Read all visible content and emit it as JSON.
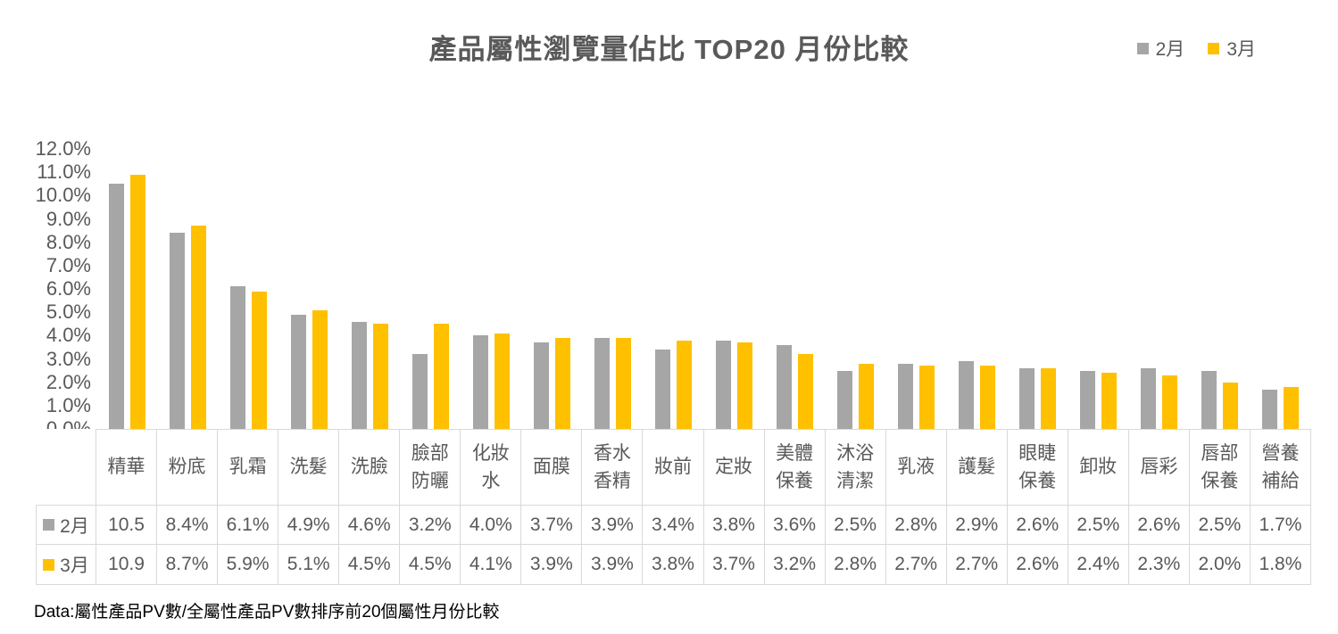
{
  "title": "產品屬性瀏覽量佔比 TOP20 月份比較",
  "legend": {
    "items": [
      {
        "key": "feb",
        "label": "2月",
        "color": "#a6a6a6"
      },
      {
        "key": "mar",
        "label": "3月",
        "color": "#ffc000"
      }
    ]
  },
  "y_axis": {
    "labels": [
      "12.0%",
      "11.0%",
      "10.0%",
      "9.0%",
      "8.0%",
      "7.0%",
      "6.0%",
      "5.0%",
      "4.0%",
      "3.0%",
      "2.0%",
      "1.0%",
      "0.0%"
    ]
  },
  "chart_data": {
    "type": "bar",
    "title": "產品屬性瀏覽量佔比 TOP20 月份比較",
    "categories": [
      "精華",
      "粉底",
      "乳霜",
      "洗髮",
      "洗臉",
      "臉部防曬",
      "化妝水",
      "面膜",
      "香水香精",
      "妝前",
      "定妝",
      "美體保養",
      "沐浴清潔",
      "乳液",
      "護髮",
      "眼睫保養",
      "卸妝",
      "唇彩",
      "唇部保養",
      "營養補給"
    ],
    "categories_display": [
      "精華",
      "粉底",
      "乳霜",
      "洗髮",
      "洗臉",
      "臉部\n防曬",
      "化妝\n水",
      "面膜",
      "香水\n香精",
      "妝前",
      "定妝",
      "美體\n保養",
      "沐浴\n清潔",
      "乳液",
      "護髮",
      "眼睫\n保養",
      "卸妝",
      "唇彩",
      "唇部\n保養",
      "營養\n補給"
    ],
    "series": [
      {
        "name": "2月",
        "key": "feb",
        "color": "#a6a6a6",
        "values": [
          10.5,
          8.4,
          6.1,
          4.9,
          4.6,
          3.2,
          4.0,
          3.7,
          3.9,
          3.4,
          3.8,
          3.6,
          2.5,
          2.8,
          2.9,
          2.6,
          2.5,
          2.6,
          2.5,
          1.7
        ],
        "display": [
          "10.5",
          "8.4%",
          "6.1%",
          "4.9%",
          "4.6%",
          "3.2%",
          "4.0%",
          "3.7%",
          "3.9%",
          "3.4%",
          "3.8%",
          "3.6%",
          "2.5%",
          "2.8%",
          "2.9%",
          "2.6%",
          "2.5%",
          "2.6%",
          "2.5%",
          "1.7%"
        ]
      },
      {
        "name": "3月",
        "key": "mar",
        "color": "#ffc000",
        "values": [
          10.9,
          8.7,
          5.9,
          5.1,
          4.5,
          4.5,
          4.1,
          3.9,
          3.9,
          3.8,
          3.7,
          3.2,
          2.8,
          2.7,
          2.7,
          2.6,
          2.4,
          2.3,
          2.0,
          1.8
        ],
        "display": [
          "10.9",
          "8.7%",
          "5.9%",
          "5.1%",
          "4.5%",
          "4.5%",
          "4.1%",
          "3.9%",
          "3.9%",
          "3.8%",
          "3.7%",
          "3.2%",
          "2.8%",
          "2.7%",
          "2.7%",
          "2.6%",
          "2.4%",
          "2.3%",
          "2.0%",
          "1.8%"
        ]
      }
    ],
    "ylim": [
      0,
      12
    ],
    "ytick_step": 1.0,
    "unit": "%",
    "grid": false,
    "legend_position": "top-right"
  },
  "footer": "Data:屬性產品PV數/全屬性產品PV數排序前20個屬性月份比較"
}
